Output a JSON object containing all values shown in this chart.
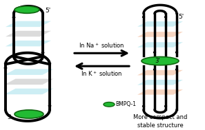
{
  "bg_color": "#ffffff",
  "strand_color": "#000000",
  "strand_lw": 2.8,
  "ellipse_color": "#22bb33",
  "ellipse_edge": "#116611",
  "cyan_color": "#b8e8f0",
  "salmon_color": "#f5c5a8",
  "gray_color": "#cccccc",
  "text_bmpq": "BMPQ-1",
  "text_compact": "More compact and\nstable structure",
  "fig_width": 2.97,
  "fig_height": 1.89,
  "dpi": 100
}
